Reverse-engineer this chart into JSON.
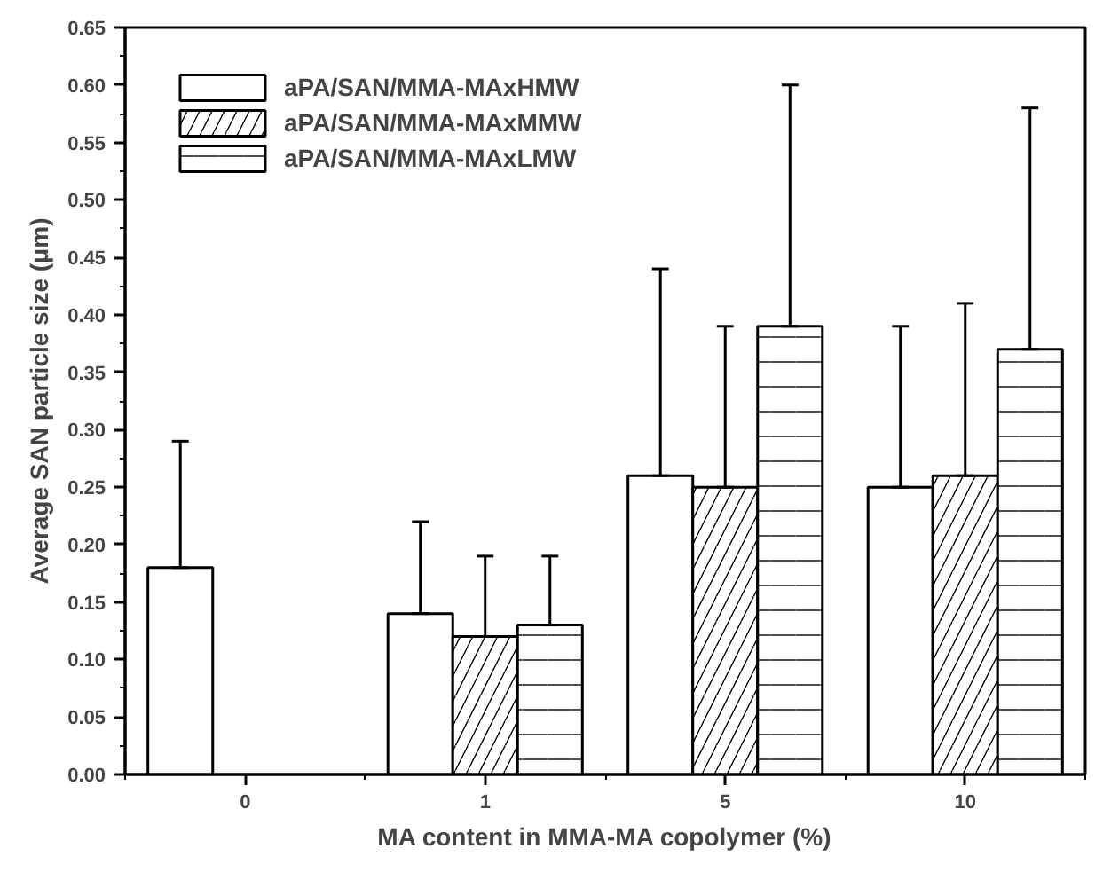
{
  "chart_data": {
    "type": "bar",
    "xlabel": "MA content in MMA-MA copolymer (%)",
    "ylabel": "Average SAN particle size (μm)",
    "categories": [
      "0",
      "1",
      "5",
      "10"
    ],
    "series": [
      {
        "name": "aPA/SAN/MMA-MAxHMW",
        "color": "#ffffff",
        "values": [
          0.18,
          0.14,
          0.26,
          0.25
        ],
        "errors": [
          [
            0.18,
            0.29
          ],
          [
            0.14,
            0.22
          ],
          [
            0.26,
            0.44
          ],
          [
            0.25,
            0.39
          ]
        ]
      },
      {
        "name": "aPA/SAN/MMA-MAxMMW",
        "color": "#ffffff",
        "values": [
          null,
          0.12,
          0.25,
          0.26
        ],
        "errors": [
          null,
          [
            0.12,
            0.19
          ],
          [
            0.25,
            0.39
          ],
          [
            0.26,
            0.41
          ]
        ]
      },
      {
        "name": "aPA/SAN/MMA-MAxLMW",
        "color": "#ffffff",
        "values": [
          null,
          0.13,
          0.39,
          0.37
        ],
        "errors": [
          null,
          [
            0.13,
            0.19
          ],
          [
            0.39,
            0.6
          ],
          [
            0.37,
            0.58
          ]
        ]
      }
    ],
    "ylim": [
      0,
      0.65
    ],
    "yticks": [
      {
        "value": 0,
        "label": "0.00"
      },
      {
        "value": 0.05,
        "label": "0.05"
      },
      {
        "value": 0.1,
        "label": "0.10"
      },
      {
        "value": 0.15,
        "label": "0.15"
      },
      {
        "value": 0.2,
        "label": "0.20"
      },
      {
        "value": 0.25,
        "label": "0.25"
      },
      {
        "value": 0.3,
        "label": "0.30"
      },
      {
        "value": 0.35,
        "label": "0.35"
      },
      {
        "value": 0.4,
        "label": "0.40"
      },
      {
        "value": 0.45,
        "label": "0.45"
      },
      {
        "value": 0.5,
        "label": "0.50"
      },
      {
        "value": 0.55,
        "label": "0.55"
      },
      {
        "value": 0.6,
        "label": "0.60"
      },
      {
        "value": 0.65,
        "label": "0.65"
      }
    ],
    "grid": false,
    "legend": "top left"
  }
}
